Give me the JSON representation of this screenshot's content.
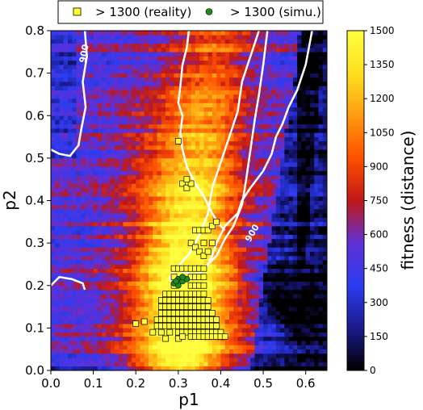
{
  "chart_data": {
    "type": "heatmap",
    "xlabel": "p1",
    "ylabel": "p2",
    "xlim": [
      0.0,
      0.65
    ],
    "ylim": [
      0.0,
      0.8
    ],
    "x_ticks": [
      "0.0",
      "0.1",
      "0.2",
      "0.3",
      "0.4",
      "0.5",
      "0.6"
    ],
    "y_ticks": [
      "0.0",
      "0.1",
      "0.2",
      "0.3",
      "0.4",
      "0.5",
      "0.6",
      "0.7",
      "0.8"
    ],
    "colorbar": {
      "label": "fitness (distance)",
      "range": [
        0,
        1500
      ],
      "ticks": [
        "0",
        "150",
        "300",
        "450",
        "600",
        "750",
        "900",
        "1050",
        "1200",
        "1350",
        "1500"
      ],
      "colormap": [
        "#000000",
        "#1a1a8c",
        "#2c3cf0",
        "#6030d8",
        "#c01818",
        "#ff5000",
        "#ff9a10",
        "#ffe020",
        "#ffff40"
      ]
    },
    "contour": {
      "level": 900,
      "labels": [
        "900",
        "900"
      ],
      "color": "#ffffff",
      "paths": [
        [
          [
            0.08,
            0.8
          ],
          [
            0.085,
            0.74
          ],
          [
            0.075,
            0.68
          ],
          [
            0.082,
            0.62
          ],
          [
            0.072,
            0.57
          ],
          [
            0.065,
            0.53
          ],
          [
            0.045,
            0.505
          ],
          [
            0.02,
            0.51
          ],
          [
            0.0,
            0.52
          ]
        ],
        [
          [
            0.0,
            0.2
          ],
          [
            0.02,
            0.22
          ],
          [
            0.05,
            0.215
          ],
          [
            0.075,
            0.205
          ],
          [
            0.08,
            0.19
          ]
        ],
        [
          [
            0.49,
            0.8
          ],
          [
            0.47,
            0.74
          ],
          [
            0.45,
            0.68
          ],
          [
            0.44,
            0.61
          ],
          [
            0.42,
            0.55
          ],
          [
            0.4,
            0.49
          ],
          [
            0.38,
            0.43
          ],
          [
            0.37,
            0.37
          ],
          [
            0.35,
            0.32
          ],
          [
            0.33,
            0.28
          ],
          [
            0.3,
            0.245
          ],
          [
            0.28,
            0.22
          ],
          [
            0.285,
            0.205
          ],
          [
            0.31,
            0.21
          ],
          [
            0.35,
            0.23
          ],
          [
            0.39,
            0.27
          ],
          [
            0.41,
            0.31
          ],
          [
            0.43,
            0.34
          ],
          [
            0.45,
            0.39
          ],
          [
            0.46,
            0.45
          ],
          [
            0.47,
            0.52
          ],
          [
            0.48,
            0.59
          ],
          [
            0.49,
            0.65
          ],
          [
            0.5,
            0.72
          ],
          [
            0.51,
            0.8
          ]
        ],
        [
          [
            0.615,
            0.8
          ],
          [
            0.6,
            0.72
          ],
          [
            0.58,
            0.66
          ],
          [
            0.56,
            0.62
          ],
          [
            0.545,
            0.58
          ],
          [
            0.53,
            0.55
          ],
          [
            0.52,
            0.51
          ],
          [
            0.5,
            0.47
          ],
          [
            0.47,
            0.43
          ],
          [
            0.45,
            0.4
          ],
          [
            0.44,
            0.37
          ],
          [
            0.41,
            0.34
          ],
          [
            0.39,
            0.3
          ],
          [
            0.38,
            0.27
          ],
          [
            0.37,
            0.25
          ],
          [
            0.36,
            0.235
          ],
          [
            0.34,
            0.225
          ],
          [
            0.32,
            0.23
          ],
          [
            0.3,
            0.235
          ]
        ],
        [
          [
            0.325,
            0.8
          ],
          [
            0.32,
            0.76
          ],
          [
            0.31,
            0.72
          ],
          [
            0.305,
            0.67
          ],
          [
            0.3,
            0.63
          ],
          [
            0.31,
            0.6
          ],
          [
            0.305,
            0.56
          ],
          [
            0.31,
            0.52
          ],
          [
            0.32,
            0.48
          ],
          [
            0.34,
            0.44
          ],
          [
            0.36,
            0.41
          ],
          [
            0.38,
            0.37
          ],
          [
            0.395,
            0.345
          ],
          [
            0.41,
            0.33
          ]
        ]
      ]
    },
    "series": [
      {
        "name": "> 1300 (reality)",
        "marker": "square",
        "color": "#ffff33",
        "points": [
          [
            0.3,
            0.54
          ],
          [
            0.31,
            0.44
          ],
          [
            0.32,
            0.43
          ],
          [
            0.33,
            0.44
          ],
          [
            0.32,
            0.45
          ],
          [
            0.34,
            0.33
          ],
          [
            0.35,
            0.33
          ],
          [
            0.36,
            0.33
          ],
          [
            0.37,
            0.33
          ],
          [
            0.38,
            0.34
          ],
          [
            0.39,
            0.35
          ],
          [
            0.33,
            0.3
          ],
          [
            0.34,
            0.29
          ],
          [
            0.35,
            0.28
          ],
          [
            0.36,
            0.27
          ],
          [
            0.37,
            0.28
          ],
          [
            0.38,
            0.3
          ],
          [
            0.36,
            0.3
          ],
          [
            0.29,
            0.24
          ],
          [
            0.3,
            0.24
          ],
          [
            0.31,
            0.24
          ],
          [
            0.32,
            0.24
          ],
          [
            0.33,
            0.24
          ],
          [
            0.34,
            0.24
          ],
          [
            0.35,
            0.24
          ],
          [
            0.36,
            0.24
          ],
          [
            0.29,
            0.22
          ],
          [
            0.33,
            0.22
          ],
          [
            0.34,
            0.22
          ],
          [
            0.35,
            0.22
          ],
          [
            0.36,
            0.22
          ],
          [
            0.29,
            0.2
          ],
          [
            0.33,
            0.2
          ],
          [
            0.34,
            0.2
          ],
          [
            0.35,
            0.2
          ],
          [
            0.36,
            0.2
          ],
          [
            0.27,
            0.18
          ],
          [
            0.28,
            0.18
          ],
          [
            0.29,
            0.18
          ],
          [
            0.3,
            0.18
          ],
          [
            0.31,
            0.18
          ],
          [
            0.32,
            0.18
          ],
          [
            0.33,
            0.18
          ],
          [
            0.34,
            0.18
          ],
          [
            0.35,
            0.18
          ],
          [
            0.36,
            0.18
          ],
          [
            0.26,
            0.165
          ],
          [
            0.27,
            0.165
          ],
          [
            0.28,
            0.165
          ],
          [
            0.29,
            0.165
          ],
          [
            0.3,
            0.165
          ],
          [
            0.31,
            0.165
          ],
          [
            0.32,
            0.165
          ],
          [
            0.33,
            0.165
          ],
          [
            0.34,
            0.165
          ],
          [
            0.35,
            0.165
          ],
          [
            0.36,
            0.165
          ],
          [
            0.37,
            0.165
          ],
          [
            0.26,
            0.15
          ],
          [
            0.27,
            0.15
          ],
          [
            0.28,
            0.15
          ],
          [
            0.29,
            0.15
          ],
          [
            0.3,
            0.15
          ],
          [
            0.31,
            0.15
          ],
          [
            0.32,
            0.15
          ],
          [
            0.33,
            0.15
          ],
          [
            0.34,
            0.15
          ],
          [
            0.35,
            0.15
          ],
          [
            0.36,
            0.15
          ],
          [
            0.37,
            0.15
          ],
          [
            0.26,
            0.135
          ],
          [
            0.27,
            0.135
          ],
          [
            0.28,
            0.135
          ],
          [
            0.29,
            0.135
          ],
          [
            0.3,
            0.135
          ],
          [
            0.31,
            0.135
          ],
          [
            0.32,
            0.135
          ],
          [
            0.33,
            0.135
          ],
          [
            0.34,
            0.135
          ],
          [
            0.35,
            0.135
          ],
          [
            0.36,
            0.135
          ],
          [
            0.37,
            0.135
          ],
          [
            0.38,
            0.135
          ],
          [
            0.25,
            0.12
          ],
          [
            0.26,
            0.12
          ],
          [
            0.27,
            0.12
          ],
          [
            0.28,
            0.12
          ],
          [
            0.29,
            0.12
          ],
          [
            0.3,
            0.12
          ],
          [
            0.31,
            0.12
          ],
          [
            0.32,
            0.12
          ],
          [
            0.33,
            0.12
          ],
          [
            0.34,
            0.12
          ],
          [
            0.35,
            0.12
          ],
          [
            0.36,
            0.12
          ],
          [
            0.37,
            0.12
          ],
          [
            0.38,
            0.12
          ],
          [
            0.39,
            0.12
          ],
          [
            0.2,
            0.11
          ],
          [
            0.22,
            0.115
          ],
          [
            0.25,
            0.105
          ],
          [
            0.26,
            0.105
          ],
          [
            0.27,
            0.105
          ],
          [
            0.28,
            0.105
          ],
          [
            0.29,
            0.105
          ],
          [
            0.3,
            0.105
          ],
          [
            0.31,
            0.105
          ],
          [
            0.32,
            0.105
          ],
          [
            0.33,
            0.105
          ],
          [
            0.34,
            0.105
          ],
          [
            0.35,
            0.105
          ],
          [
            0.36,
            0.105
          ],
          [
            0.37,
            0.105
          ],
          [
            0.38,
            0.105
          ],
          [
            0.39,
            0.105
          ],
          [
            0.24,
            0.09
          ],
          [
            0.26,
            0.09
          ],
          [
            0.28,
            0.09
          ],
          [
            0.3,
            0.09
          ],
          [
            0.31,
            0.09
          ],
          [
            0.32,
            0.09
          ],
          [
            0.33,
            0.09
          ],
          [
            0.34,
            0.09
          ],
          [
            0.35,
            0.09
          ],
          [
            0.36,
            0.09
          ],
          [
            0.37,
            0.09
          ],
          [
            0.38,
            0.09
          ],
          [
            0.39,
            0.09
          ],
          [
            0.4,
            0.09
          ],
          [
            0.27,
            0.075
          ],
          [
            0.3,
            0.075
          ],
          [
            0.31,
            0.08
          ],
          [
            0.33,
            0.08
          ],
          [
            0.34,
            0.08
          ],
          [
            0.35,
            0.08
          ],
          [
            0.36,
            0.08
          ],
          [
            0.37,
            0.08
          ],
          [
            0.38,
            0.08
          ],
          [
            0.39,
            0.08
          ],
          [
            0.4,
            0.08
          ],
          [
            0.41,
            0.08
          ]
        ]
      },
      {
        "name": "> 1300 (simu.)",
        "marker": "circle",
        "color": "#1a8c1a",
        "points": [
          [
            0.29,
            0.205
          ],
          [
            0.3,
            0.215
          ],
          [
            0.31,
            0.21
          ],
          [
            0.3,
            0.2
          ],
          [
            0.32,
            0.215
          ],
          [
            0.31,
            0.22
          ],
          [
            0.295,
            0.21
          ]
        ]
      }
    ],
    "legend": "top-center, outside"
  }
}
